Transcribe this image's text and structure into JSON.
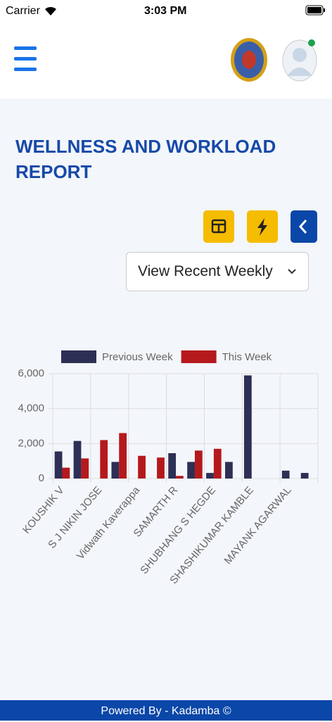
{
  "status_bar": {
    "carrier": "Carrier",
    "time": "3:03 PM"
  },
  "page": {
    "title_line1": "WELLNESS AND WORKLOAD",
    "title_line2": "REPORT",
    "dropdown": "View Recent Weekly"
  },
  "footer": {
    "text": "Powered By - Kadamba ©"
  },
  "chart_data": {
    "type": "bar",
    "categories": [
      "KOUSHIK V",
      null,
      "S J NIKIN JOSE",
      null,
      "Vidwath Kaverappa",
      null,
      "SAMARTH R",
      null,
      "SHUBHANG S HEGDE",
      null,
      "SHASHIKUMAR KAMBLE",
      null,
      "MAYANK AGARWAL",
      null
    ],
    "series": [
      {
        "name": "Previous Week",
        "color": "#2d2f55",
        "values": [
          1550,
          2150,
          0,
          950,
          0,
          0,
          1450,
          950,
          320,
          950,
          5900,
          0,
          450,
          320
        ]
      },
      {
        "name": "This Week",
        "color": "#b5191c",
        "values": [
          620,
          1150,
          2200,
          2600,
          1300,
          1200,
          150,
          1600,
          1700,
          0,
          0,
          0,
          0,
          0
        ]
      }
    ],
    "ylim": [
      0,
      6000
    ],
    "yticks": [
      0,
      {
        "value": 2000,
        "label": "2,000"
      },
      {
        "value": 4000,
        "label": "4,000"
      },
      {
        "value": 6000,
        "label": "6,000"
      }
    ],
    "grid": true,
    "legend": "top"
  }
}
